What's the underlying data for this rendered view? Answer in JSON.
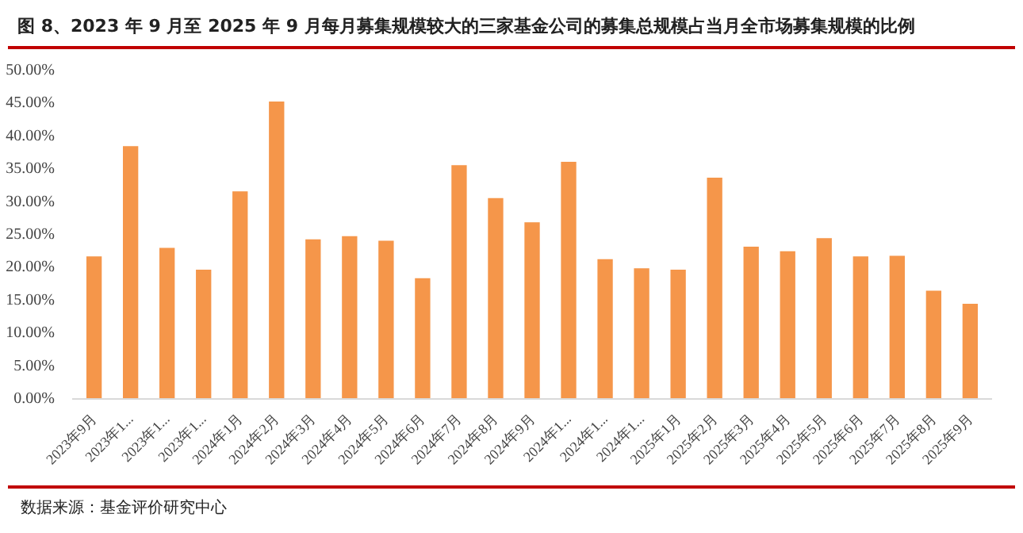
{
  "chart_data": {
    "type": "bar",
    "title": "图 8、2023 年 9 月至 2025 年 9 月每月募集规模较大的三家基金公司的募集总规模占当月全市场募集规模的比例",
    "categories": [
      "2023年9月",
      "2023年1...",
      "2023年1...",
      "2023年1...",
      "2024年1月",
      "2024年2月",
      "2024年3月",
      "2024年4月",
      "2024年5月",
      "2024年6月",
      "2024年7月",
      "2024年8月",
      "2024年9月",
      "2024年1...",
      "2024年1...",
      "2024年1...",
      "2025年1月",
      "2025年2月",
      "2025年3月",
      "2025年4月",
      "2025年5月",
      "2025年6月",
      "2025年7月",
      "2025年8月",
      "2025年9月"
    ],
    "values": [
      21.7,
      38.5,
      23.0,
      19.7,
      31.6,
      45.3,
      24.3,
      24.8,
      24.1,
      18.4,
      35.6,
      30.6,
      26.9,
      36.1,
      21.3,
      19.9,
      19.7,
      33.7,
      23.2,
      22.5,
      24.5,
      21.7,
      21.8,
      16.5,
      14.5
    ],
    "color": "#f5964a",
    "ylim": [
      0,
      50
    ],
    "yticks": [
      {
        "value": 0,
        "label": "0.00%"
      },
      {
        "value": 5,
        "label": "5.00%"
      },
      {
        "value": 10,
        "label": "10.00%"
      },
      {
        "value": 15,
        "label": "15.00%"
      },
      {
        "value": 20,
        "label": "20.00%"
      },
      {
        "value": 25,
        "label": "25.00%"
      },
      {
        "value": 30,
        "label": "30.00%"
      },
      {
        "value": 35,
        "label": "35.00%"
      },
      {
        "value": 40,
        "label": "40.00%"
      },
      {
        "value": 45,
        "label": "45.00%"
      },
      {
        "value": 50,
        "label": "50.00%"
      }
    ],
    "grid": false,
    "annotations": [
      "数据来源：基金评价研究中心"
    ]
  }
}
